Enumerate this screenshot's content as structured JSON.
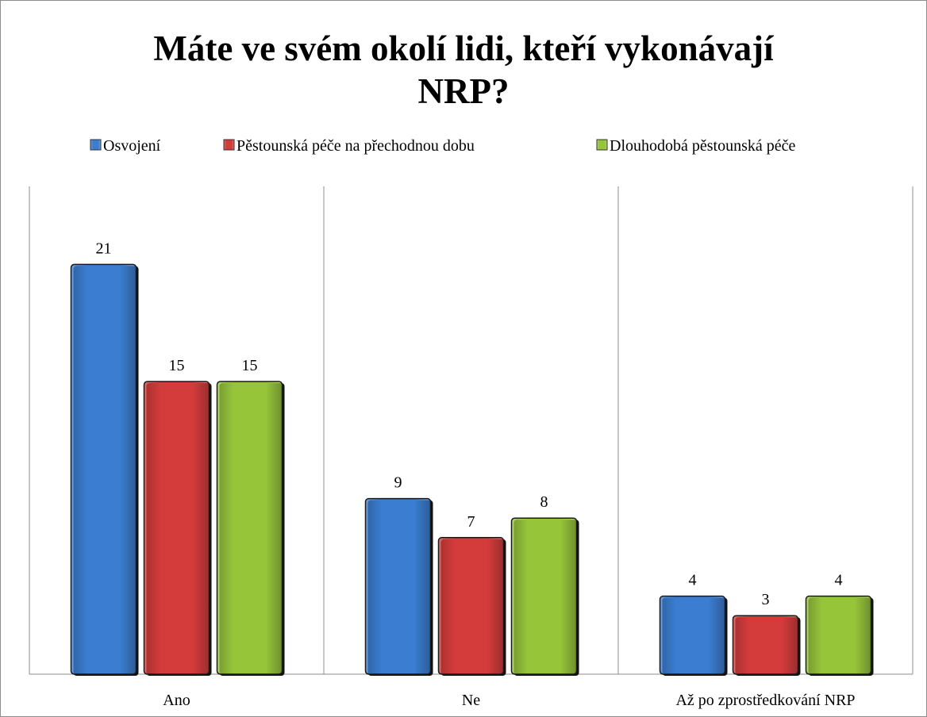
{
  "chart_data": {
    "type": "bar",
    "title": "Máte ve svém okolí lidi, kteří vykonávají NRP?",
    "categories": [
      "Ano",
      "Ne",
      "Až po zprostředkování NRP"
    ],
    "series": [
      {
        "name": "Osvojení",
        "color": "#3a7dd1",
        "values": [
          21,
          9,
          4
        ]
      },
      {
        "name": "Pěstounská péče na přechodnou dobu",
        "color": "#d43b3b",
        "values": [
          15,
          7,
          3
        ]
      },
      {
        "name": "Dlouhodobá pěstounská péče",
        "color": "#96c53a",
        "values": [
          15,
          8,
          4
        ]
      }
    ],
    "ylim": [
      0,
      25
    ],
    "legend": "top"
  }
}
